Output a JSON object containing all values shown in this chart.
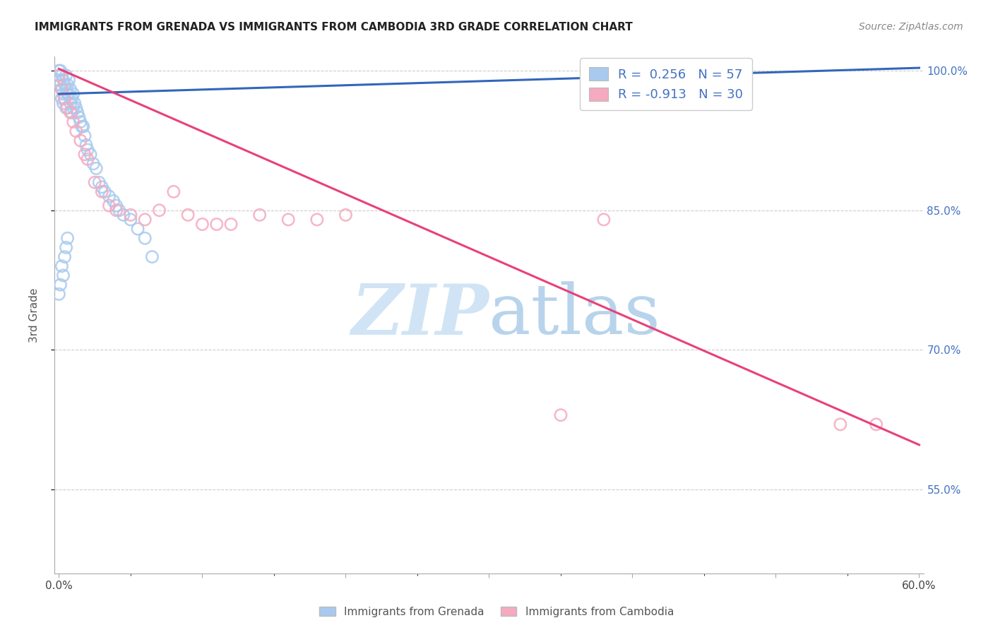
{
  "title": "IMMIGRANTS FROM GRENADA VS IMMIGRANTS FROM CAMBODIA 3RD GRADE CORRELATION CHART",
  "source": "Source: ZipAtlas.com",
  "ylabel": "3rd Grade",
  "xlim": [
    -0.003,
    0.603
  ],
  "ylim": [
    0.46,
    1.015
  ],
  "grenada_R": 0.256,
  "grenada_N": 57,
  "cambodia_R": -0.913,
  "cambodia_N": 30,
  "grenada_color": "#A8CAEE",
  "grenada_line_color": "#3366BB",
  "cambodia_color": "#F5AABF",
  "cambodia_line_color": "#E8417A",
  "legend_text_color": "#4472C4",
  "watermark_color": "#D0E4F5",
  "background_color": "#FFFFFF",
  "ytick_vals": [
    0.55,
    0.7,
    0.85,
    1.0
  ],
  "ytick_labels": [
    "55.0%",
    "70.0%",
    "85.0%",
    "100.0%"
  ],
  "grenada_line_x0": 0.0,
  "grenada_line_x1": 0.6,
  "grenada_line_y0": 0.975,
  "grenada_line_y1": 1.003,
  "cambodia_line_x0": 0.0,
  "cambodia_line_x1": 0.6,
  "cambodia_line_y0": 1.002,
  "cambodia_line_y1": 0.598,
  "grenada_x": [
    0.0,
    0.0,
    0.001,
    0.001,
    0.002,
    0.002,
    0.002,
    0.003,
    0.003,
    0.003,
    0.004,
    0.004,
    0.005,
    0.005,
    0.005,
    0.006,
    0.006,
    0.007,
    0.007,
    0.008,
    0.008,
    0.009,
    0.009,
    0.01,
    0.01,
    0.011,
    0.012,
    0.013,
    0.014,
    0.015,
    0.016,
    0.017,
    0.018,
    0.019,
    0.02,
    0.022,
    0.024,
    0.026,
    0.028,
    0.03,
    0.032,
    0.035,
    0.038,
    0.04,
    0.042,
    0.045,
    0.05,
    0.055,
    0.06,
    0.065,
    0.0,
    0.001,
    0.002,
    0.003,
    0.004,
    0.005,
    0.006
  ],
  "grenada_y": [
    1.0,
    0.99,
    1.0,
    0.985,
    0.995,
    0.98,
    0.97,
    0.99,
    0.975,
    0.965,
    0.985,
    0.97,
    0.995,
    0.98,
    0.96,
    0.985,
    0.975,
    0.99,
    0.975,
    0.98,
    0.965,
    0.97,
    0.955,
    0.975,
    0.96,
    0.965,
    0.96,
    0.955,
    0.95,
    0.945,
    0.94,
    0.94,
    0.93,
    0.92,
    0.915,
    0.91,
    0.9,
    0.895,
    0.88,
    0.875,
    0.87,
    0.865,
    0.86,
    0.855,
    0.85,
    0.845,
    0.84,
    0.83,
    0.82,
    0.8,
    0.76,
    0.77,
    0.79,
    0.78,
    0.8,
    0.81,
    0.82
  ],
  "cambodia_x": [
    0.0,
    0.002,
    0.004,
    0.006,
    0.008,
    0.01,
    0.012,
    0.015,
    0.018,
    0.02,
    0.025,
    0.03,
    0.035,
    0.04,
    0.05,
    0.06,
    0.07,
    0.08,
    0.09,
    0.1,
    0.11,
    0.12,
    0.14,
    0.16,
    0.18,
    0.2,
    0.35,
    0.38,
    0.545,
    0.57
  ],
  "cambodia_y": [
    0.995,
    0.98,
    0.97,
    0.96,
    0.955,
    0.945,
    0.935,
    0.925,
    0.91,
    0.905,
    0.88,
    0.87,
    0.855,
    0.85,
    0.845,
    0.84,
    0.85,
    0.87,
    0.845,
    0.835,
    0.835,
    0.835,
    0.845,
    0.84,
    0.84,
    0.845,
    0.63,
    0.84,
    0.62,
    0.62
  ]
}
